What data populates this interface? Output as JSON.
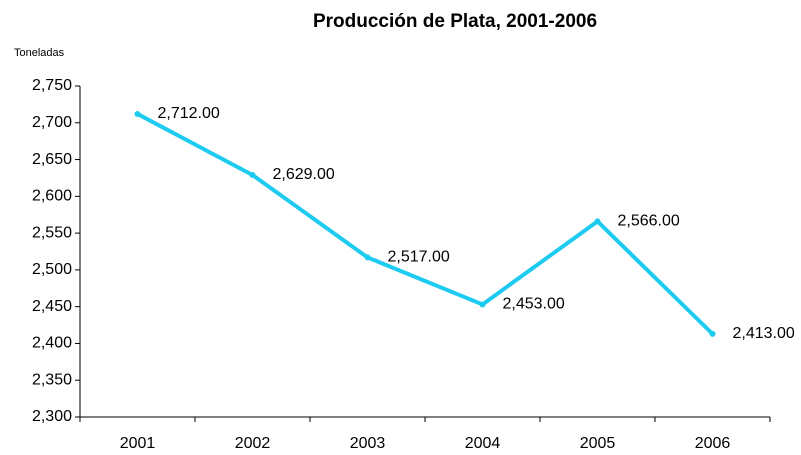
{
  "chart_data": {
    "type": "line",
    "title": "Producción de Plata, 2001-2006",
    "y_label": "Toneladas",
    "categories": [
      "2001",
      "2002",
      "2003",
      "2004",
      "2005",
      "2006"
    ],
    "series": [
      {
        "name": "Producción",
        "color": "#1ecbf0",
        "values": [
          2712,
          2629,
          2517,
          2453,
          2566,
          2413
        ],
        "value_labels": [
          "2,712.00",
          "2,629.00",
          "2,517.00",
          "2,453.00",
          "2,566.00",
          "2,413.00"
        ]
      }
    ],
    "ylim": [
      2300,
      2750
    ],
    "yticks": [
      {
        "value": 2300,
        "label": "2,300"
      },
      {
        "value": 2350,
        "label": "2,350"
      },
      {
        "value": 2400,
        "label": "2,400"
      },
      {
        "value": 2450,
        "label": "2,450"
      },
      {
        "value": 2500,
        "label": "2,500"
      },
      {
        "value": 2550,
        "label": "2,550"
      },
      {
        "value": 2600,
        "label": "2,600"
      },
      {
        "value": 2650,
        "label": "2,650"
      },
      {
        "value": 2700,
        "label": "2,700"
      },
      {
        "value": 2750,
        "label": "2,750"
      }
    ],
    "grid": false
  }
}
